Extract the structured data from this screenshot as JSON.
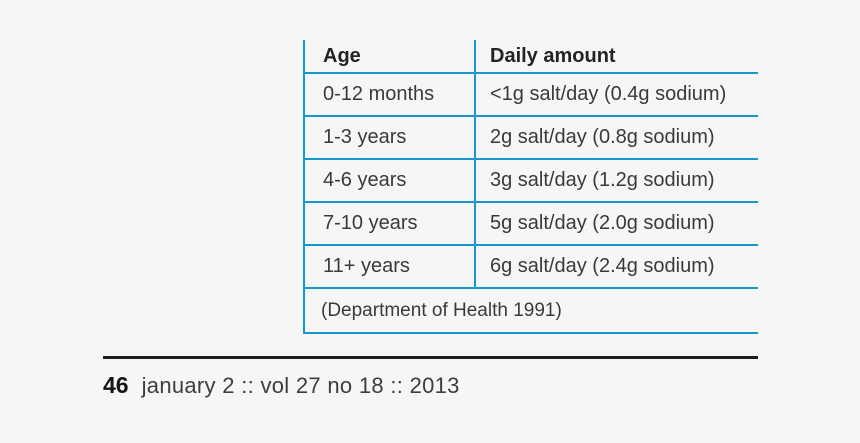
{
  "page": {
    "background_color": "#f6f6f6",
    "table_line_color": "#1897cc",
    "rule_color": "#1d1d1b"
  },
  "table": {
    "columns": [
      "Age",
      "Daily amount"
    ],
    "rows": [
      {
        "age": "0-12 months",
        "amount": "<1g salt/day (0.4g sodium)"
      },
      {
        "age": "1-3 years",
        "amount": "2g salt/day (0.8g sodium)"
      },
      {
        "age": "4-6 years",
        "amount": "3g salt/day (1.2g sodium)"
      },
      {
        "age": "7-10 years",
        "amount": "5g salt/day (2.0g sodium)"
      },
      {
        "age": "11+ years",
        "amount": "6g salt/day (2.4g sodium)"
      }
    ],
    "source": "(Department of Health 1991)"
  },
  "footer": {
    "page_number": "46",
    "issue_info": "january 2 :: vol 27 no 18 :: 2013"
  }
}
